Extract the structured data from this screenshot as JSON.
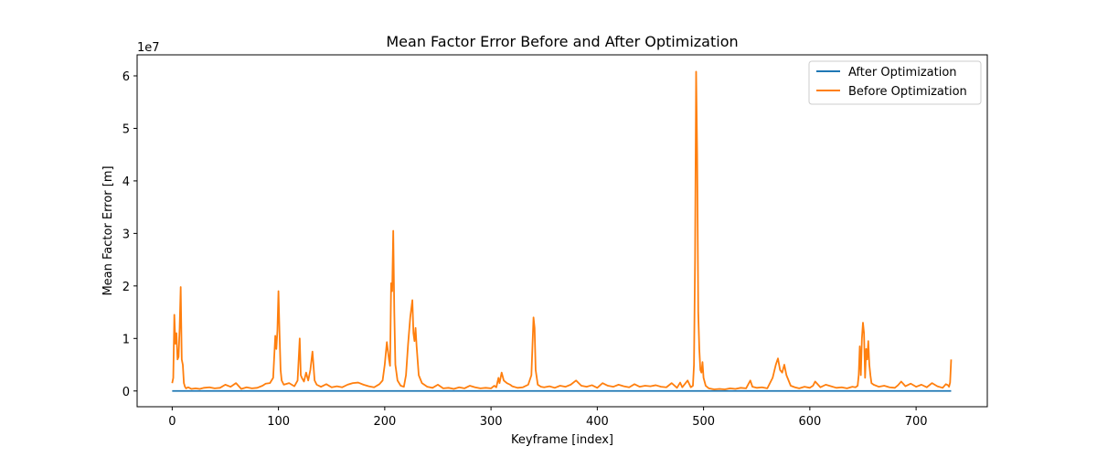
{
  "chart_data": {
    "type": "line",
    "title": "Mean Factor Error Before and After Optimization",
    "xlabel": "Keyframe [index]",
    "ylabel": "Mean Factor Error [m]",
    "y_offset_label": "1e7",
    "xlim": [
      -33,
      767
    ],
    "ylim": [
      -3000000,
      64000000
    ],
    "xticks": [
      0,
      100,
      200,
      300,
      400,
      500,
      600,
      700
    ],
    "yticks": [
      0,
      10000000,
      20000000,
      30000000,
      40000000,
      50000000,
      60000000
    ],
    "xtick_labels": [
      "0",
      "100",
      "200",
      "300",
      "400",
      "500",
      "600",
      "700"
    ],
    "ytick_labels": [
      "0",
      "1",
      "2",
      "3",
      "4",
      "5",
      "6"
    ],
    "grid": false,
    "legend_position": "top-right",
    "series": [
      {
        "name": "After Optimization",
        "color": "#1f77b4",
        "x": [
          0,
          733
        ],
        "values": [
          0,
          0
        ]
      },
      {
        "name": "Before Optimization",
        "color": "#ff7f0e",
        "x": [
          0,
          1,
          2,
          3,
          4,
          5,
          6,
          7,
          8,
          9,
          10,
          11,
          12,
          13,
          15,
          18,
          22,
          26,
          30,
          35,
          40,
          45,
          50,
          55,
          60,
          65,
          70,
          75,
          80,
          85,
          88,
          92,
          95,
          97,
          98,
          99,
          100,
          101,
          102,
          103,
          105,
          110,
          115,
          118,
          120,
          121,
          122,
          124,
          126,
          128,
          130,
          132,
          134,
          136,
          140,
          145,
          150,
          155,
          160,
          165,
          170,
          175,
          180,
          185,
          190,
          195,
          198,
          200,
          202,
          204,
          205,
          206,
          207,
          208,
          209,
          210,
          212,
          215,
          218,
          220,
          222,
          224,
          226,
          227,
          228,
          229,
          230,
          232,
          235,
          240,
          245,
          250,
          255,
          260,
          265,
          270,
          275,
          280,
          285,
          290,
          295,
          300,
          303,
          305,
          307,
          308,
          310,
          312,
          315,
          318,
          320,
          325,
          330,
          335,
          338,
          340,
          341,
          342,
          344,
          347,
          350,
          355,
          360,
          365,
          370,
          375,
          380,
          385,
          390,
          395,
          400,
          405,
          410,
          415,
          420,
          425,
          430,
          435,
          440,
          445,
          450,
          455,
          460,
          465,
          470,
          475,
          478,
          480,
          485,
          488,
          490,
          491,
          492,
          493,
          494,
          495,
          496,
          497,
          498,
          499,
          500,
          502,
          505,
          510,
          515,
          520,
          525,
          530,
          535,
          540,
          544,
          546,
          550,
          555,
          560,
          565,
          568,
          570,
          572,
          574,
          576,
          578,
          582,
          586,
          590,
          595,
          600,
          603,
          605,
          610,
          615,
          620,
          625,
          630,
          635,
          640,
          643,
          645,
          646,
          647,
          648,
          649,
          650,
          651,
          652,
          653,
          654,
          655,
          656,
          657,
          658,
          660,
          665,
          670,
          675,
          680,
          683,
          686,
          690,
          695,
          700,
          705,
          710,
          715,
          720,
          725,
          728,
          730,
          731,
          732,
          733
        ],
        "values": [
          1500000,
          2500000,
          14500000,
          9000000,
          11000000,
          6000000,
          6500000,
          12000000,
          19800000,
          6000000,
          5000000,
          1500000,
          800000,
          500000,
          700000,
          400000,
          500000,
          400000,
          600000,
          700000,
          500000,
          600000,
          1200000,
          800000,
          1500000,
          400000,
          700000,
          500000,
          600000,
          1000000,
          1400000,
          1500000,
          2500000,
          10500000,
          8000000,
          11500000,
          19000000,
          11000000,
          4000000,
          2000000,
          1200000,
          1500000,
          900000,
          2000000,
          10000000,
          3000000,
          2500000,
          1800000,
          3500000,
          2000000,
          4000000,
          7500000,
          2000000,
          1200000,
          800000,
          1300000,
          700000,
          900000,
          700000,
          1200000,
          1500000,
          1600000,
          1200000,
          900000,
          700000,
          1300000,
          2000000,
          5000000,
          9300000,
          6000000,
          4800000,
          20500000,
          19000000,
          30500000,
          15000000,
          5000000,
          2000000,
          1000000,
          800000,
          3000000,
          9000000,
          14000000,
          17300000,
          11000000,
          9500000,
          12000000,
          8500000,
          3000000,
          1500000,
          800000,
          600000,
          1200000,
          500000,
          600000,
          400000,
          700000,
          500000,
          1000000,
          700000,
          500000,
          600000,
          500000,
          1000000,
          700000,
          2500000,
          1500000,
          3500000,
          2000000,
          1500000,
          1200000,
          900000,
          600000,
          700000,
          1200000,
          3000000,
          14000000,
          12000000,
          4000000,
          1200000,
          800000,
          700000,
          900000,
          600000,
          1000000,
          800000,
          1200000,
          2000000,
          1000000,
          800000,
          1100000,
          600000,
          1500000,
          1000000,
          800000,
          1200000,
          900000,
          700000,
          1300000,
          800000,
          1000000,
          900000,
          1100000,
          800000,
          700000,
          1500000,
          600000,
          1600000,
          700000,
          2000000,
          700000,
          1000000,
          5000000,
          25000000,
          60800000,
          45000000,
          15000000,
          8000000,
          4000000,
          3500000,
          5500000,
          2500000,
          1000000,
          500000,
          300000,
          400000,
          300000,
          500000,
          400000,
          600000,
          500000,
          2000000,
          800000,
          600000,
          700000,
          500000,
          2500000,
          5000000,
          6200000,
          4000000,
          3500000,
          5000000,
          3000000,
          1000000,
          700000,
          500000,
          800000,
          600000,
          1000000,
          1800000,
          700000,
          1200000,
          900000,
          600000,
          700000,
          500000,
          800000,
          700000,
          1000000,
          3000000,
          8500000,
          3000000,
          10000000,
          13000000,
          11000000,
          2500000,
          8000000,
          6000000,
          9500000,
          5000000,
          3000000,
          1500000,
          1200000,
          800000,
          1000000,
          700000,
          600000,
          1100000,
          1800000,
          900000,
          1400000,
          800000,
          1200000,
          700000,
          1500000,
          900000,
          600000,
          1300000,
          1100000,
          800000,
          1600000,
          6000000
        ]
      }
    ]
  }
}
